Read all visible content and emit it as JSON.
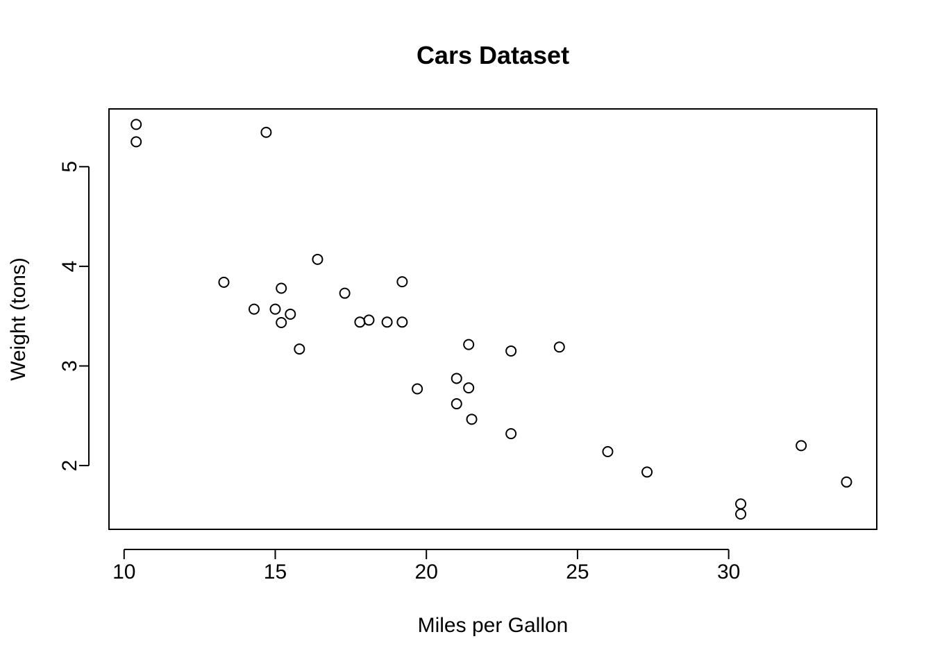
{
  "chart_data": {
    "type": "scatter",
    "title": "Cars Dataset",
    "xlabel": "Miles per Gallon",
    "ylabel": "Weight (tons)",
    "xlim": [
      9.5,
      34.9
    ],
    "ylim": [
      1.36,
      5.58
    ],
    "xticks": [
      10,
      15,
      20,
      25,
      30
    ],
    "yticks": [
      2,
      3,
      4,
      5
    ],
    "grid": false,
    "marker": "open-circle",
    "points": [
      {
        "x": 21.0,
        "y": 2.62
      },
      {
        "x": 21.0,
        "y": 2.875
      },
      {
        "x": 22.8,
        "y": 2.32
      },
      {
        "x": 21.4,
        "y": 3.215
      },
      {
        "x": 18.7,
        "y": 3.44
      },
      {
        "x": 18.1,
        "y": 3.46
      },
      {
        "x": 14.3,
        "y": 3.57
      },
      {
        "x": 24.4,
        "y": 3.19
      },
      {
        "x": 22.8,
        "y": 3.15
      },
      {
        "x": 19.2,
        "y": 3.44
      },
      {
        "x": 17.8,
        "y": 3.44
      },
      {
        "x": 16.4,
        "y": 4.07
      },
      {
        "x": 17.3,
        "y": 3.73
      },
      {
        "x": 15.2,
        "y": 3.78
      },
      {
        "x": 10.4,
        "y": 5.25
      },
      {
        "x": 10.4,
        "y": 5.424
      },
      {
        "x": 14.7,
        "y": 5.345
      },
      {
        "x": 32.4,
        "y": 2.2
      },
      {
        "x": 30.4,
        "y": 1.615
      },
      {
        "x": 33.9,
        "y": 1.835
      },
      {
        "x": 21.5,
        "y": 2.465
      },
      {
        "x": 15.5,
        "y": 3.52
      },
      {
        "x": 15.2,
        "y": 3.435
      },
      {
        "x": 13.3,
        "y": 3.84
      },
      {
        "x": 19.2,
        "y": 3.845
      },
      {
        "x": 27.3,
        "y": 1.935
      },
      {
        "x": 26.0,
        "y": 2.14
      },
      {
        "x": 30.4,
        "y": 1.513
      },
      {
        "x": 15.8,
        "y": 3.17
      },
      {
        "x": 19.7,
        "y": 2.77
      },
      {
        "x": 15.0,
        "y": 3.57
      },
      {
        "x": 21.4,
        "y": 2.78
      }
    ]
  }
}
